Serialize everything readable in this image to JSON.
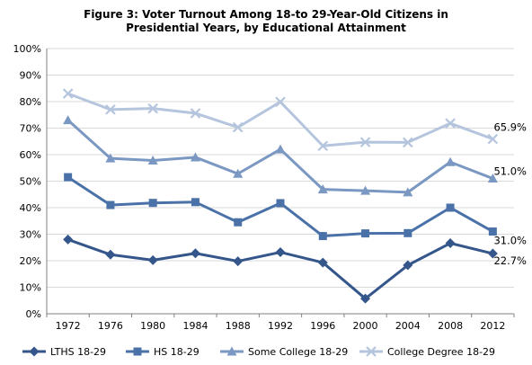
{
  "chart_data": {
    "type": "line",
    "title_lines": [
      "Figure 3: Voter Turnout Among 18-to 29-Year-Old Citizens in",
      "Presidential Years, by Educational Attainment"
    ],
    "xlabel": "",
    "ylabel": "",
    "x": [
      "1972",
      "1976",
      "1980",
      "1984",
      "1988",
      "1992",
      "1996",
      "2000",
      "2004",
      "2008",
      "2012"
    ],
    "ylim": [
      0,
      100
    ],
    "yticks": [
      "0%",
      "10%",
      "20%",
      "30%",
      "40%",
      "50%",
      "60%",
      "70%",
      "80%",
      "90%",
      "100%"
    ],
    "grid": true,
    "legend": "bottom",
    "series": [
      {
        "name": "LTHS 18-29",
        "marker": "diamond",
        "color": "#34568b",
        "values": [
          28,
          22.3,
          20.2,
          22.8,
          19.8,
          23.2,
          19.3,
          5.7,
          18.3,
          26.6,
          22.7
        ],
        "end_label": "22.7%"
      },
      {
        "name": "HS 18-29",
        "marker": "square",
        "color": "#4a72a8",
        "values": [
          51.5,
          41,
          41.8,
          42.1,
          34.5,
          41.7,
          29.3,
          30.3,
          30.4,
          40,
          31
        ],
        "end_label": "31.0%"
      },
      {
        "name": "Some College 18-29",
        "marker": "triangle",
        "color": "#7a98c2",
        "values": [
          73,
          58.6,
          57.8,
          59,
          52.8,
          62,
          46.9,
          46.4,
          45.8,
          57.2,
          51
        ],
        "end_label": "51.0%"
      },
      {
        "name": "College Degree 18-29",
        "marker": "x",
        "color": "#b4c5dd",
        "values": [
          83,
          77,
          77.4,
          75.6,
          70.3,
          79.9,
          63.3,
          64.7,
          64.6,
          71.8,
          65.9
        ],
        "end_label": "65.9%"
      }
    ]
  }
}
